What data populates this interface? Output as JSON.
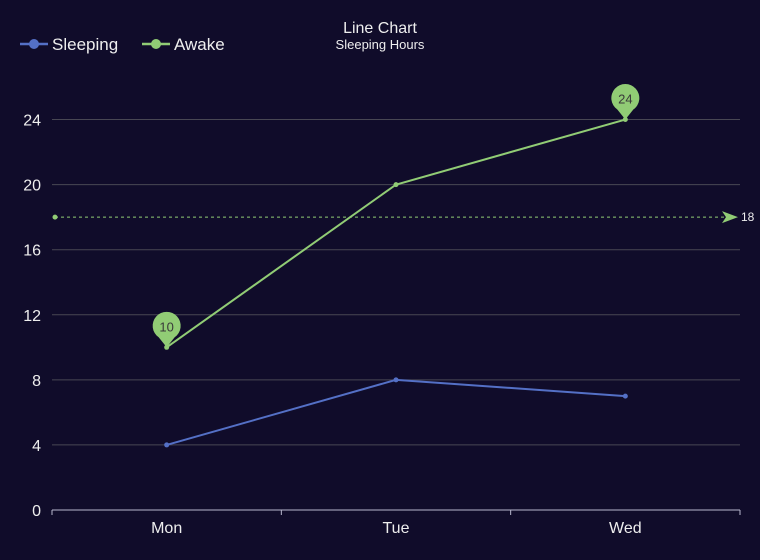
{
  "chart_data": {
    "type": "line",
    "title": "Line Chart",
    "subtitle": "Sleeping Hours",
    "categories": [
      "Mon",
      "Tue",
      "Wed"
    ],
    "series": [
      {
        "name": "Sleeping",
        "values": [
          4,
          8,
          7
        ],
        "color": "#5470c6"
      },
      {
        "name": "Awake",
        "values": [
          10,
          20,
          24
        ],
        "color": "#91cc75"
      }
    ],
    "ylim": [
      0,
      26
    ],
    "yticks": [
      "0",
      "4",
      "8",
      "12",
      "16",
      "20",
      "24"
    ],
    "markpoints": {
      "series": "Awake",
      "points": [
        {
          "category": "Mon",
          "label": "10"
        },
        {
          "category": "Wed",
          "label": "24"
        }
      ]
    },
    "markline": {
      "series": "Awake",
      "value": 18,
      "label": "18"
    },
    "legend_position": "top-left",
    "grid": true
  },
  "colors": {
    "background": "#100c2a",
    "text": "#eeeeee",
    "gridline": "#484753",
    "axis": "#b9b8ce"
  }
}
